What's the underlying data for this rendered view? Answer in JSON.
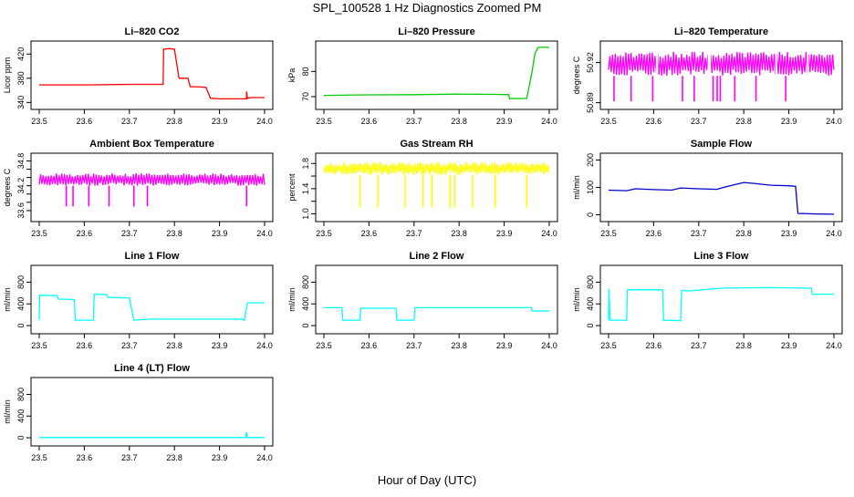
{
  "figure": {
    "title": "SPL_100528  1 Hz Diagnostics Zoomed PM",
    "xlabel": "Hour of Day (UTC)"
  },
  "chart_data": [
    {
      "type": "line",
      "title": "Li–820 CO2",
      "ylabel": "Licor ppm",
      "color": "#ff0000",
      "xlim": [
        23.5,
        24.0
      ],
      "xticks": [
        23.5,
        23.6,
        23.7,
        23.8,
        23.9,
        24.0
      ],
      "xtick_labels": [
        "23.5",
        "23.6",
        "23.7",
        "23.8",
        "23.9",
        "24.0"
      ],
      "ylim": [
        333,
        437
      ],
      "yticks": [
        340,
        380,
        420
      ],
      "ytick_labels": [
        "340",
        "380",
        "420"
      ],
      "series": [
        {
          "name": "Li-820 CO2",
          "x": [
            23.5,
            23.6,
            23.7,
            23.775,
            23.776,
            23.79,
            23.8,
            23.81,
            23.811,
            23.83,
            23.835,
            23.85,
            23.87,
            23.88,
            23.9,
            23.95,
            23.96,
            23.96,
            23.962,
            23.97,
            24.0
          ],
          "y": [
            369,
            369,
            370,
            370,
            428,
            429,
            428,
            381,
            380,
            380,
            366,
            366,
            365,
            347,
            346,
            346,
            346,
            358,
            347,
            348,
            348
          ]
        }
      ]
    },
    {
      "type": "line",
      "title": "Li–820 Pressure",
      "ylabel": "kPa",
      "color": "#00cc00",
      "xlim": [
        23.5,
        24.0
      ],
      "xticks": [
        23.5,
        23.6,
        23.7,
        23.8,
        23.9,
        24.0
      ],
      "xtick_labels": [
        "23.5",
        "23.6",
        "23.7",
        "23.8",
        "23.9",
        "24.0"
      ],
      "ylim": [
        66,
        91
      ],
      "yticks": [
        70,
        80
      ],
      "ytick_labels": [
        "70",
        "80"
      ],
      "series": [
        {
          "name": "Li-820 Pressure",
          "x": [
            23.5,
            23.6,
            23.7,
            23.8,
            23.88,
            23.91,
            23.912,
            23.95,
            23.952,
            23.962,
            23.968,
            23.975,
            23.98,
            24.0
          ],
          "y": [
            70.5,
            70.7,
            70.8,
            71.0,
            70.9,
            70.8,
            69.2,
            69.3,
            71,
            80,
            87,
            89.5,
            89.6,
            89.6
          ]
        }
      ]
    },
    {
      "type": "line",
      "title": "Li–820 Temperature",
      "ylabel": "degrees C",
      "color": "#ff00ff",
      "xlim": [
        23.5,
        24.0
      ],
      "xticks": [
        23.5,
        23.6,
        23.7,
        23.8,
        23.9,
        24.0
      ],
      "xtick_labels": [
        "23.5",
        "23.6",
        "23.7",
        "23.8",
        "23.9",
        "24.0"
      ],
      "ylim": [
        50.887,
        50.934
      ],
      "yticks": [
        50.89,
        50.92
      ],
      "ytick_labels": [
        "50.89",
        "50.92"
      ],
      "style": "band",
      "band": {
        "low": 50.91,
        "high": 50.928,
        "dip_level": 50.891,
        "dips": [
          23.512,
          23.55,
          23.598,
          23.664,
          23.69,
          23.732,
          23.741,
          23.748,
          23.78,
          23.827,
          23.893
        ],
        "gaps": [
          [
            23.605,
            23.61
          ],
          [
            23.72,
            23.727
          ],
          [
            23.87,
            23.874
          ],
          [
            23.94,
            23.944
          ]
        ]
      }
    },
    {
      "type": "line",
      "title": "Ambient Box Temperature",
      "ylabel": "degrees C",
      "color": "#ff00ff",
      "xlim": [
        23.5,
        24.0
      ],
      "xticks": [
        23.5,
        23.6,
        23.7,
        23.8,
        23.9,
        24.0
      ],
      "xtick_labels": [
        "23.5",
        "23.6",
        "23.7",
        "23.8",
        "23.9",
        "24.0"
      ],
      "ylim": [
        33.4,
        34.92
      ],
      "yticks": [
        33.6,
        34.2,
        34.8
      ],
      "ytick_labels": [
        "33.6",
        "34.2",
        "34.8"
      ],
      "minor_yticks": [
        33.8,
        34.0,
        34.4,
        34.6
      ],
      "style": "band",
      "band": {
        "low": 34.2,
        "high": 34.5,
        "dip_level": 33.7,
        "dips": [
          23.56,
          23.575,
          23.61,
          23.655,
          23.71,
          23.74,
          23.96
        ],
        "gaps": []
      }
    },
    {
      "type": "line",
      "title": "Gas Stream RH",
      "ylabel": "percent",
      "color": "#ffff00",
      "xlim": [
        23.5,
        24.0
      ],
      "xticks": [
        23.5,
        23.6,
        23.7,
        23.8,
        23.9,
        24.0
      ],
      "xtick_labels": [
        "23.5",
        "23.6",
        "23.7",
        "23.8",
        "23.9",
        "24.0"
      ],
      "ylim": [
        0.92,
        1.92
      ],
      "yticks": [
        1.0,
        1.4,
        1.8
      ],
      "ytick_labels": [
        "1.0",
        "1.4",
        "1.8"
      ],
      "minor_yticks": [
        1.2,
        1.6
      ],
      "style": "band",
      "band": {
        "low": 1.62,
        "high": 1.82,
        "dip_level": 1.1,
        "dips": [
          23.58,
          23.62,
          23.68,
          23.72,
          23.74,
          23.78,
          23.79,
          23.83,
          23.88,
          23.95
        ],
        "gaps": []
      }
    },
    {
      "type": "line",
      "title": "Sample Flow",
      "ylabel": "ml/min",
      "color": "#0000cc",
      "xlim": [
        23.5,
        24.0
      ],
      "xticks": [
        23.5,
        23.6,
        23.7,
        23.8,
        23.9,
        24.0
      ],
      "xtick_labels": [
        "23.5",
        "23.6",
        "23.7",
        "23.8",
        "23.9",
        "24.0"
      ],
      "ylim": [
        -15,
        215
      ],
      "yticks": [
        0,
        100,
        200
      ],
      "ytick_labels": [
        "0",
        "100",
        "200"
      ],
      "series": [
        {
          "name": "Sample Flow",
          "x": [
            23.5,
            23.54,
            23.56,
            23.6,
            23.64,
            23.66,
            23.7,
            23.74,
            23.76,
            23.8,
            23.82,
            23.86,
            23.9,
            23.915,
            23.92,
            23.96,
            24.0
          ],
          "y": [
            90,
            88,
            95,
            92,
            90,
            98,
            95,
            93,
            102,
            118,
            115,
            108,
            106,
            104,
            5,
            3,
            2
          ]
        }
      ]
    },
    {
      "type": "line",
      "title": "Line 1 Flow",
      "ylabel": "ml/min",
      "color": "#00ffff",
      "xlim": [
        23.5,
        24.0
      ],
      "xticks": [
        23.5,
        23.6,
        23.7,
        23.8,
        23.9,
        24.0
      ],
      "xtick_labels": [
        "23.5",
        "23.6",
        "23.7",
        "23.8",
        "23.9",
        "24.0"
      ],
      "ylim": [
        -100,
        1060
      ],
      "yticks": [
        0,
        400,
        800
      ],
      "ytick_labels": [
        "0",
        "400",
        "800"
      ],
      "series": [
        {
          "name": "Line 1 Flow",
          "x": [
            23.5,
            23.501,
            23.54,
            23.542,
            23.578,
            23.58,
            23.62,
            23.622,
            23.65,
            23.652,
            23.7,
            23.71,
            23.75,
            23.95,
            23.955,
            23.962,
            24.0
          ],
          "y": [
            100,
            560,
            550,
            490,
            480,
            100,
            100,
            580,
            570,
            520,
            510,
            100,
            120,
            120,
            100,
            420,
            420
          ]
        }
      ]
    },
    {
      "type": "line",
      "title": "Line 2 Flow",
      "ylabel": "ml/min",
      "color": "#00ffff",
      "xlim": [
        23.5,
        24.0
      ],
      "xticks": [
        23.5,
        23.6,
        23.7,
        23.8,
        23.9,
        24.0
      ],
      "xtick_labels": [
        "23.5",
        "23.6",
        "23.7",
        "23.8",
        "23.9",
        "24.0"
      ],
      "ylim": [
        -100,
        1060
      ],
      "yticks": [
        0,
        400,
        800
      ],
      "ytick_labels": [
        "0",
        "400",
        "800"
      ],
      "series": [
        {
          "name": "Line 2 Flow",
          "x": [
            23.5,
            23.54,
            23.542,
            23.58,
            23.582,
            23.66,
            23.662,
            23.7,
            23.702,
            23.96,
            23.962,
            24.0
          ],
          "y": [
            330,
            330,
            100,
            100,
            320,
            320,
            100,
            100,
            330,
            330,
            270,
            270
          ]
        }
      ]
    },
    {
      "type": "line",
      "title": "Line 3 Flow",
      "ylabel": "ml/min",
      "color": "#00ffff",
      "xlim": [
        23.5,
        24.0
      ],
      "xticks": [
        23.5,
        23.6,
        23.7,
        23.8,
        23.9,
        24.0
      ],
      "xtick_labels": [
        "23.5",
        "23.6",
        "23.7",
        "23.8",
        "23.9",
        "24.0"
      ],
      "ylim": [
        -100,
        1060
      ],
      "yticks": [
        0,
        400,
        800
      ],
      "ytick_labels": [
        "0",
        "400",
        "800"
      ],
      "series": [
        {
          "name": "Line 3 Flow",
          "x": [
            23.5,
            23.501,
            23.503,
            23.54,
            23.542,
            23.62,
            23.622,
            23.66,
            23.662,
            23.68,
            23.75,
            23.85,
            23.95,
            23.952,
            24.0
          ],
          "y": [
            100,
            680,
            100,
            100,
            660,
            660,
            100,
            90,
            650,
            640,
            690,
            700,
            690,
            580,
            580
          ]
        }
      ]
    },
    {
      "type": "line",
      "title": "Line 4 (LT) Flow",
      "ylabel": "ml/min",
      "color": "#00ffff",
      "xlim": [
        23.5,
        24.0
      ],
      "xticks": [
        23.5,
        23.6,
        23.7,
        23.8,
        23.9,
        24.0
      ],
      "xtick_labels": [
        "23.5",
        "23.6",
        "23.7",
        "23.8",
        "23.9",
        "24.0"
      ],
      "ylim": [
        -100,
        1060
      ],
      "yticks": [
        0,
        400,
        800
      ],
      "ytick_labels": [
        "0",
        "400",
        "800"
      ],
      "series": [
        {
          "name": "Line 4 (LT) Flow",
          "x": [
            23.5,
            23.958,
            23.96,
            23.962,
            24.0
          ],
          "y": [
            5,
            5,
            100,
            5,
            5
          ]
        }
      ]
    }
  ]
}
